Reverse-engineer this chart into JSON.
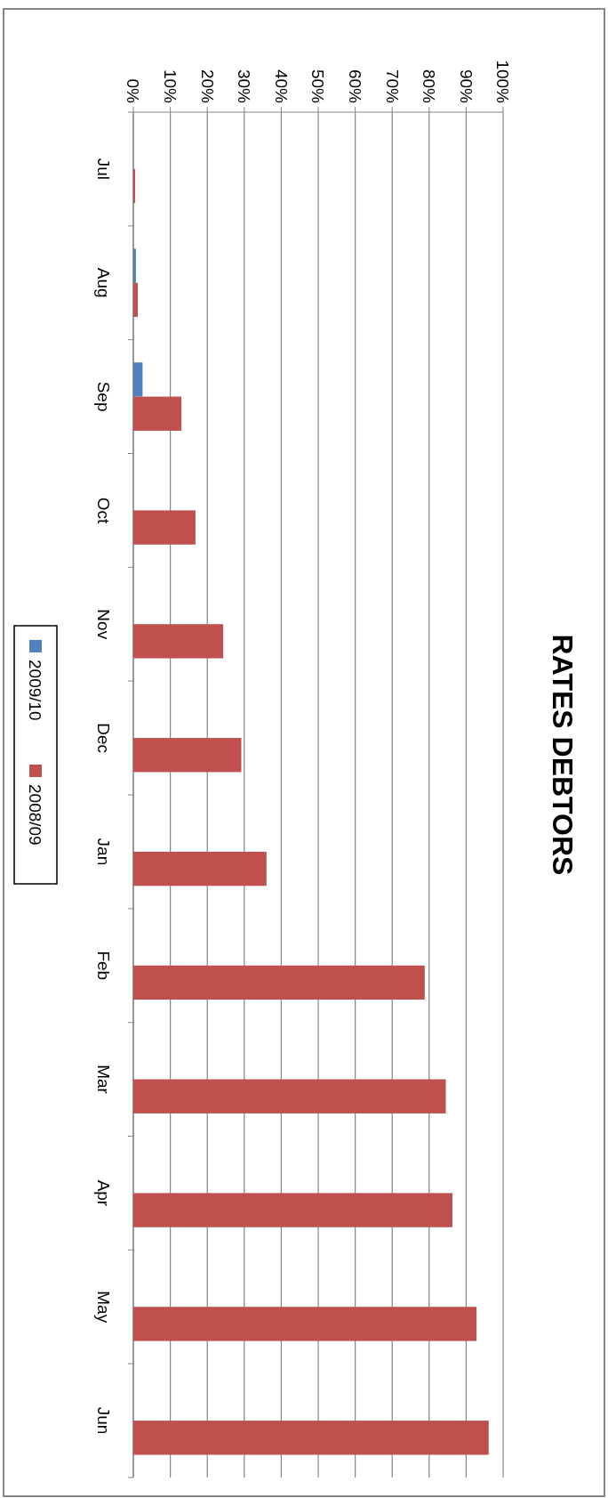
{
  "chart_data": {
    "type": "bar",
    "title": "RATES DEBTORS",
    "categories": [
      "Jul",
      "Aug",
      "Sep",
      "Oct",
      "Nov",
      "Dec",
      "Jan",
      "Feb",
      "Mar",
      "Apr",
      "May",
      "Jun"
    ],
    "series": [
      {
        "name": "2009/10",
        "color": "#4f81bd",
        "values": [
          0,
          0.7,
          2.5,
          null,
          null,
          null,
          null,
          null,
          null,
          null,
          null,
          null
        ]
      },
      {
        "name": "2008/09",
        "color": "#c0504d",
        "values": [
          0.5,
          1.2,
          13,
          16.8,
          24.3,
          29.2,
          36,
          78.8,
          84.5,
          86.3,
          92.8,
          96.1
        ]
      }
    ],
    "orientation": "horizontal",
    "xlim": [
      0,
      100
    ],
    "xticks": [
      {
        "value": 0,
        "label": "0%"
      },
      {
        "value": 10,
        "label": "10%"
      },
      {
        "value": 20,
        "label": "20%"
      },
      {
        "value": 30,
        "label": "30%"
      },
      {
        "value": 40,
        "label": "40%"
      },
      {
        "value": 50,
        "label": "50%"
      },
      {
        "value": 60,
        "label": "60%"
      },
      {
        "value": 70,
        "label": "70%"
      },
      {
        "value": 80,
        "label": "80%"
      },
      {
        "value": 90,
        "label": "90%"
      },
      {
        "value": 100,
        "label": "100%"
      }
    ],
    "grid": "x",
    "legend": "left"
  }
}
